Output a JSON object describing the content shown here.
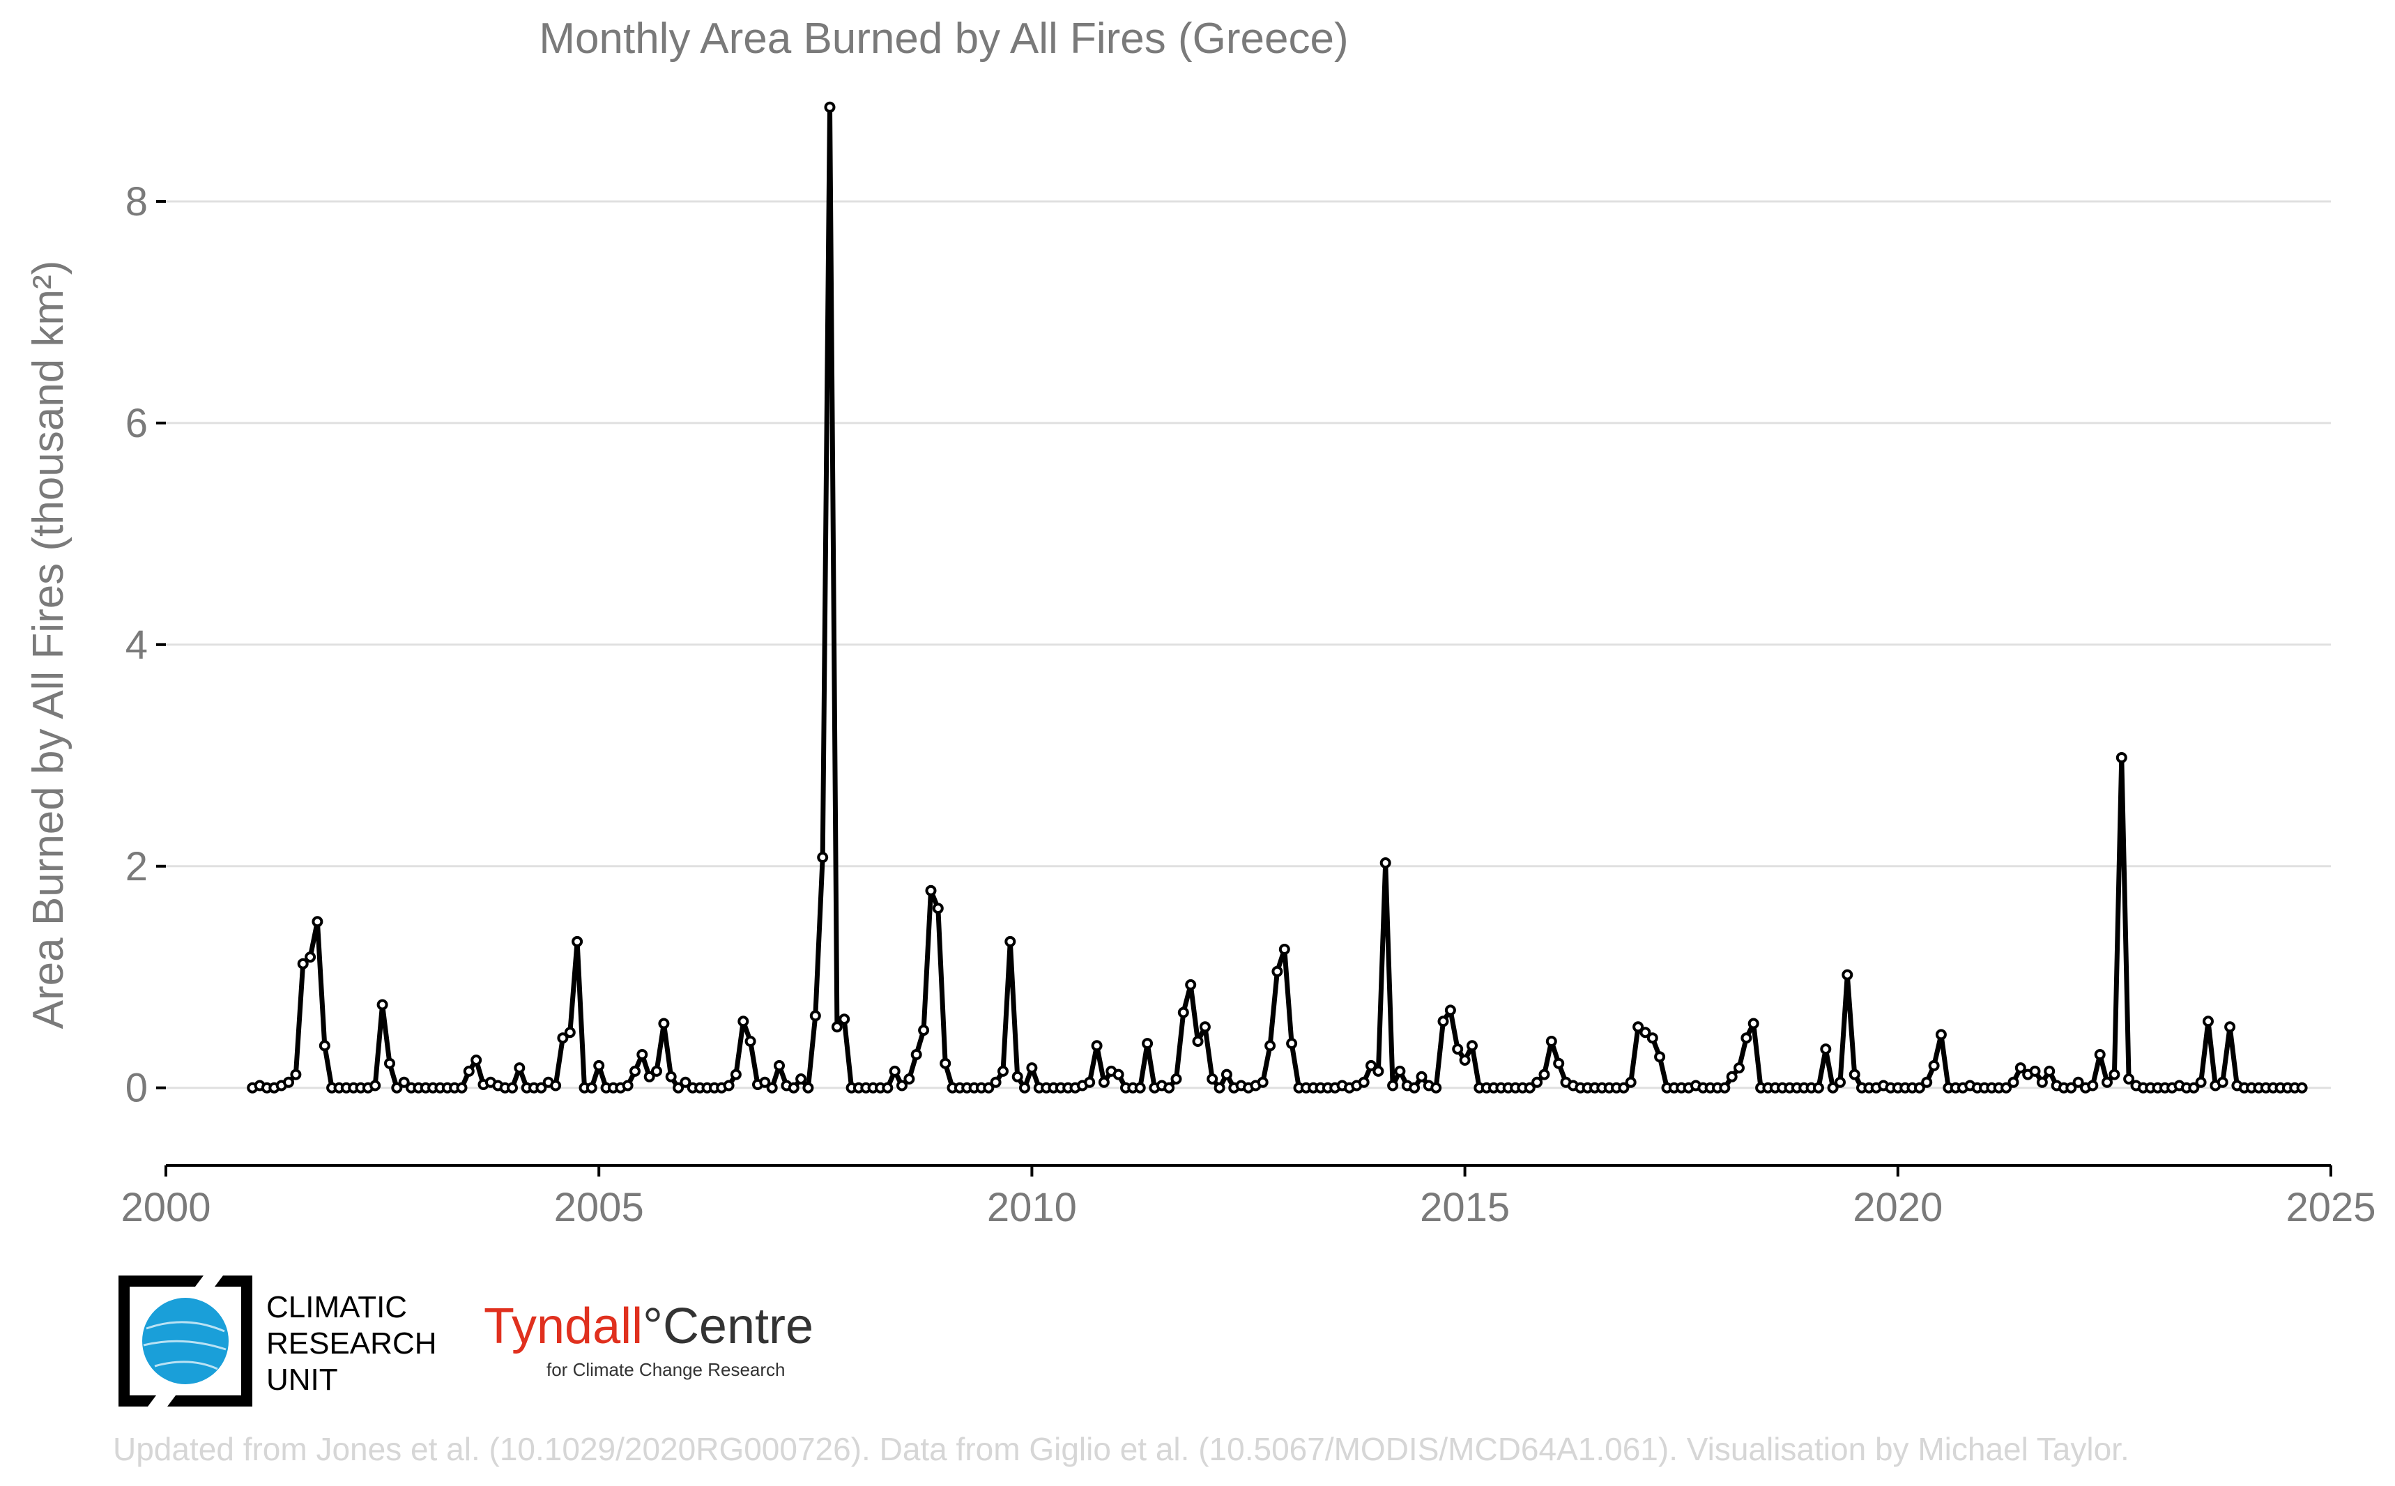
{
  "chart_data": {
    "type": "line",
    "title": "Monthly Area Burned by All Fires (Greece)",
    "ylabel": "Area Burned by All Fires (thousand km²)",
    "xlabel": "",
    "xlim": [
      2000,
      2025
    ],
    "ylim": [
      -0.7,
      9.0
    ],
    "x_ticks": [
      "2000",
      "2005",
      "2010",
      "2015",
      "2020",
      "2025"
    ],
    "y_ticks": [
      "0",
      "2",
      "4",
      "6",
      "8"
    ],
    "grid": "horizontal",
    "start": "2001-01",
    "frequency": "monthly",
    "series": [
      {
        "values": [
          0.0,
          0.02,
          0.0,
          0.0,
          0.02,
          0.05,
          0.12,
          1.12,
          1.18,
          1.5,
          0.38,
          0.0,
          0.0,
          0.0,
          0.0,
          0.0,
          0.0,
          0.02,
          0.75,
          0.22,
          0.0,
          0.05,
          0.0,
          0.0,
          0.0,
          0.0,
          0.0,
          0.0,
          0.0,
          0.0,
          0.15,
          0.25,
          0.03,
          0.05,
          0.02,
          0.0,
          0.0,
          0.18,
          0.0,
          0.0,
          0.0,
          0.05,
          0.02,
          0.45,
          0.5,
          1.32,
          0.0,
          0.0,
          0.2,
          0.0,
          0.0,
          0.0,
          0.02,
          0.15,
          0.3,
          0.1,
          0.15,
          0.58,
          0.1,
          0.0,
          0.05,
          0.0,
          0.0,
          0.0,
          0.0,
          0.0,
          0.02,
          0.12,
          0.6,
          0.42,
          0.03,
          0.05,
          0.0,
          0.2,
          0.02,
          0.0,
          0.08,
          0.0,
          0.65,
          2.08,
          8.85,
          0.55,
          0.62,
          0.0,
          0.0,
          0.0,
          0.0,
          0.0,
          0.0,
          0.15,
          0.02,
          0.08,
          0.3,
          0.52,
          1.78,
          1.62,
          0.22,
          0.0,
          0.0,
          0.0,
          0.0,
          0.0,
          0.0,
          0.05,
          0.15,
          1.32,
          0.1,
          0.0,
          0.18,
          0.0,
          0.0,
          0.0,
          0.0,
          0.0,
          0.0,
          0.02,
          0.05,
          0.38,
          0.05,
          0.15,
          0.12,
          0.0,
          0.0,
          0.0,
          0.4,
          0.0,
          0.02,
          0.0,
          0.08,
          0.68,
          0.93,
          0.42,
          0.55,
          0.08,
          0.0,
          0.12,
          0.0,
          0.02,
          0.0,
          0.02,
          0.05,
          0.38,
          1.05,
          1.25,
          0.4,
          0.0,
          0.0,
          0.0,
          0.0,
          0.0,
          0.0,
          0.02,
          0.0,
          0.02,
          0.05,
          0.2,
          0.15,
          2.03,
          0.02,
          0.15,
          0.02,
          0.0,
          0.1,
          0.02,
          0.0,
          0.6,
          0.7,
          0.35,
          0.25,
          0.38,
          0.0,
          0.0,
          0.0,
          0.0,
          0.0,
          0.0,
          0.0,
          0.0,
          0.05,
          0.12,
          0.42,
          0.22,
          0.05,
          0.02,
          0.0,
          0.0,
          0.0,
          0.0,
          0.0,
          0.0,
          0.0,
          0.05,
          0.55,
          0.5,
          0.45,
          0.28,
          0.0,
          0.0,
          0.0,
          0.0,
          0.02,
          0.0,
          0.0,
          0.0,
          0.0,
          0.1,
          0.18,
          0.45,
          0.58,
          0.0,
          0.0,
          0.0,
          0.0,
          0.0,
          0.0,
          0.0,
          0.0,
          0.0,
          0.35,
          0.0,
          0.05,
          1.02,
          0.12,
          0.0,
          0.0,
          0.0,
          0.02,
          0.0,
          0.0,
          0.0,
          0.0,
          0.0,
          0.05,
          0.2,
          0.48,
          0.0,
          0.0,
          0.0,
          0.02,
          0.0,
          0.0,
          0.0,
          0.0,
          0.0,
          0.05,
          0.18,
          0.12,
          0.15,
          0.05,
          0.15,
          0.02,
          0.0,
          0.0,
          0.05,
          0.0,
          0.02,
          0.3,
          0.05,
          0.12,
          2.98,
          0.08,
          0.02,
          0.0,
          0.0,
          0.0,
          0.0,
          0.0,
          0.02,
          0.0,
          0.0,
          0.05,
          0.6,
          0.02,
          0.05,
          0.55,
          0.02,
          0.0,
          0.0,
          0.0,
          0.0,
          0.0,
          0.0,
          0.0,
          0.0,
          0.0
        ]
      }
    ]
  },
  "logos": {
    "cru_lines": [
      "CLIMATIC",
      "RESEARCH",
      "UNIT"
    ],
    "tyndall_name": "Tyndall",
    "tyndall_degree": "°",
    "tyndall_centre": "Centre",
    "tyndall_tagline": "for Climate Change Research",
    "cru_color": "#1a9fd9",
    "tyndall_color": "#e0301e"
  },
  "footer": {
    "credit": "Updated from Jones et al. (10.1029/2020RG000726). Data from Giglio et al. (10.5067/MODIS/MCD64A1.061). Visualisation by Michael Taylor."
  }
}
